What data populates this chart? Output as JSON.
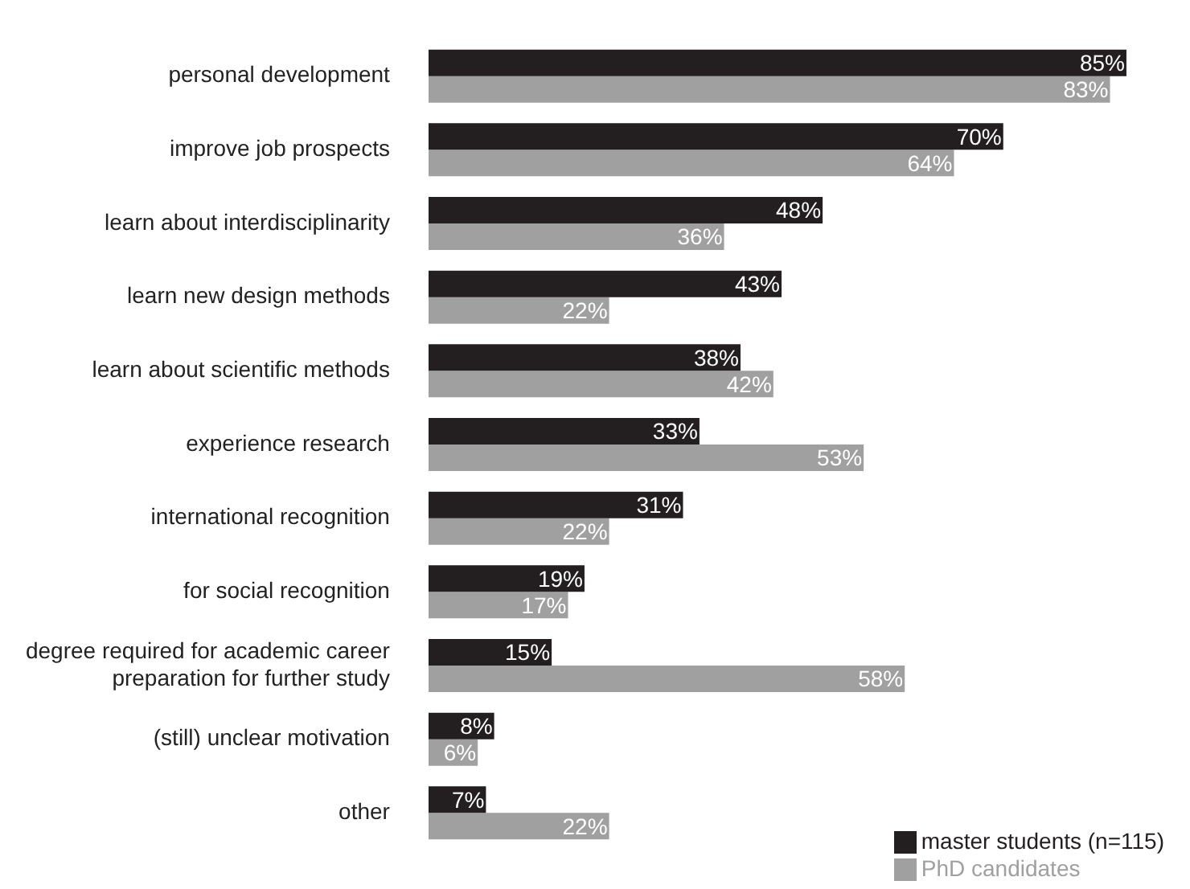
{
  "chart_data": {
    "type": "bar",
    "orientation": "horizontal",
    "legend": "bottom right",
    "categories": [
      "personal development",
      "improve job prospects",
      "learn about interdisciplinarity",
      "learn new design methods",
      "learn about scientific methods",
      "experience research",
      "international recognition",
      "for social recognition",
      "degree required for academic career\npreparation for further study",
      "(still) unclear motivation",
      "other"
    ],
    "series": [
      {
        "name": "master students (n=115)",
        "color": "#231f20",
        "values": [
          85,
          70,
          48,
          43,
          38,
          33,
          31,
          19,
          15,
          8,
          7
        ],
        "value_labels": [
          "85%",
          "70%",
          "48%",
          "43%",
          "38%",
          "33%",
          "31%",
          "19%",
          "15%",
          "8%",
          "7%"
        ]
      },
      {
        "name": "PhD candidates",
        "color": "#a0a0a0",
        "values": [
          83,
          64,
          36,
          22,
          42,
          53,
          22,
          17,
          58,
          6,
          22
        ],
        "value_labels": [
          "83%",
          "64%",
          "36%",
          "22%",
          "42%",
          "53%",
          "22%",
          "17%",
          "58%",
          "6%",
          "22%"
        ]
      }
    ]
  }
}
